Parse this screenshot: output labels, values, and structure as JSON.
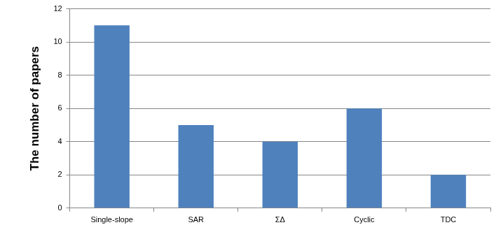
{
  "chart_data": {
    "type": "bar",
    "y_label": "The number of papers",
    "categories": [
      "Single-slope",
      "SAR",
      "ΣΔ",
      "Cyclic",
      "TDC"
    ],
    "values": [
      11,
      5,
      4,
      6,
      2
    ],
    "color": "#4f81bd",
    "ylim": [
      0,
      12
    ],
    "yticks": [
      0,
      2,
      4,
      6,
      8,
      10,
      12
    ],
    "grid": true
  }
}
